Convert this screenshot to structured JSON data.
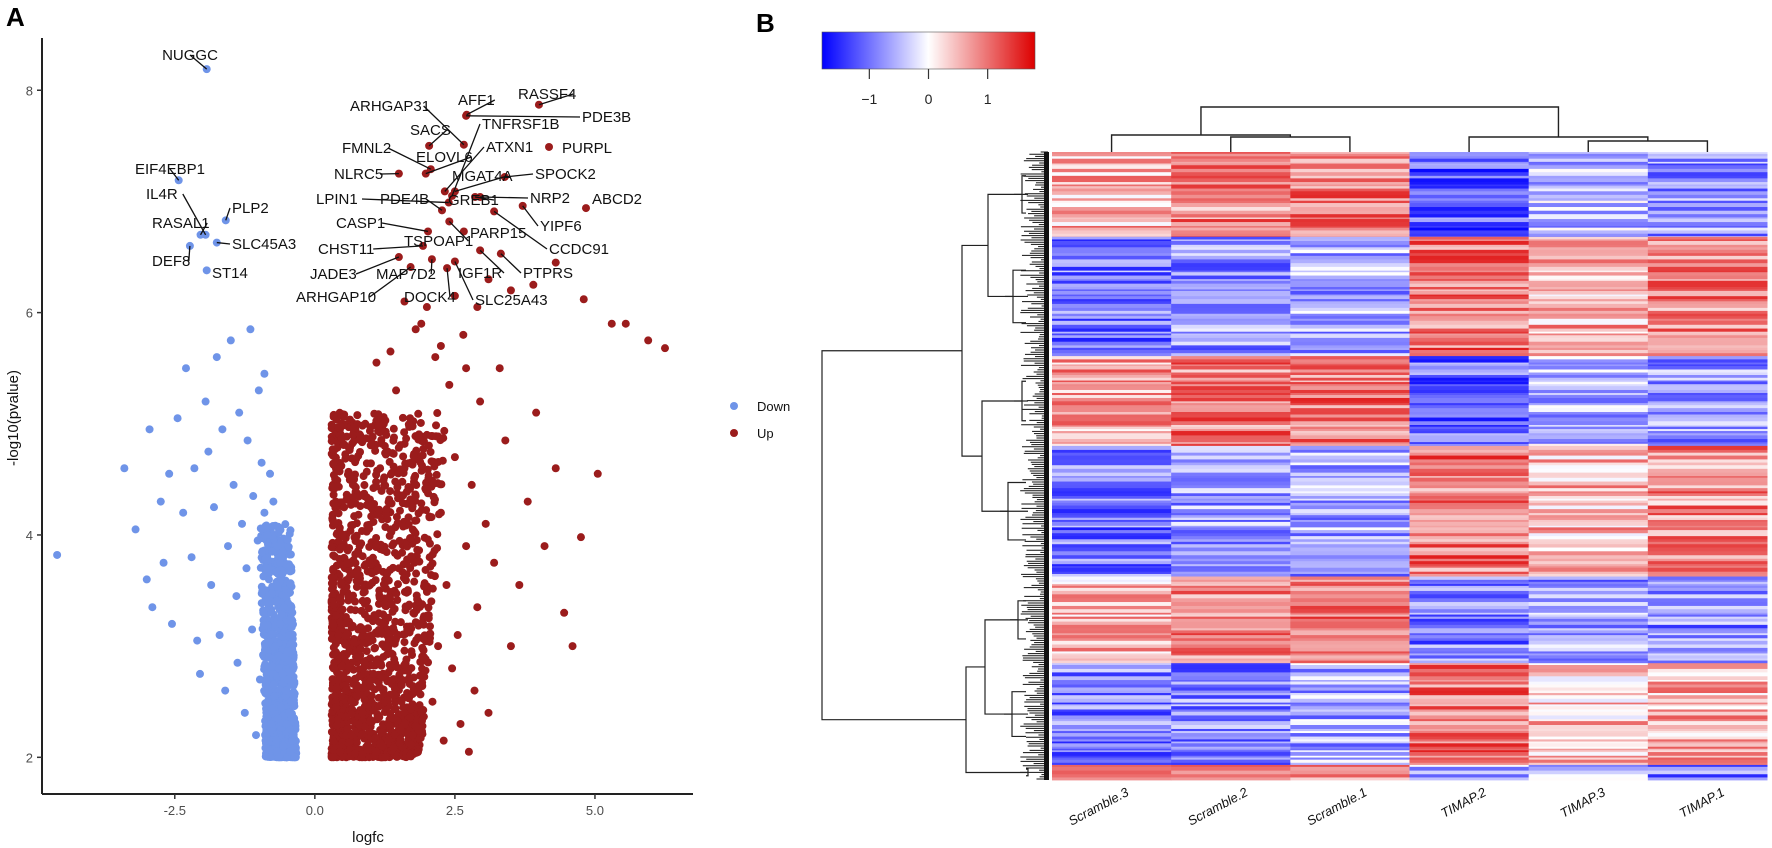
{
  "panels": {
    "a_letter": "A",
    "b_letter": "B"
  },
  "chart_data": [
    {
      "type": "scatter",
      "panel": "A",
      "title": "",
      "xlabel": "logfc",
      "ylabel": "-log10(pvalue)",
      "xlim": [
        -4.87,
        6.75
      ],
      "ylim": [
        1.67,
        8.47
      ],
      "x_ticks": [
        -2.5,
        0.0,
        2.5,
        5.0
      ],
      "x_tick_labels": [
        "-2.5",
        "0.0",
        "2.5",
        "5.0"
      ],
      "y_ticks": [
        2,
        4,
        6,
        8
      ],
      "y_tick_labels": [
        "2",
        "4",
        "6",
        "8"
      ],
      "grid": false,
      "legend": {
        "placement": "right",
        "entries": [
          {
            "name": "Down",
            "color": "#6f94e8"
          },
          {
            "name": "Up",
            "color": "#9b1c1c"
          }
        ]
      },
      "series": [
        {
          "name": "Down",
          "color": "#6f94e8",
          "points": [
            [
              -4.6,
              3.82
            ],
            [
              -3.4,
              4.6
            ],
            [
              -3.2,
              4.05
            ],
            [
              -2.95,
              4.95
            ],
            [
              -3.0,
              3.6
            ],
            [
              -2.9,
              3.35
            ],
            [
              -2.7,
              3.75
            ],
            [
              -2.55,
              3.2
            ],
            [
              -2.75,
              4.3
            ],
            [
              -2.6,
              4.55
            ],
            [
              -2.45,
              5.05
            ],
            [
              -2.3,
              5.5
            ],
            [
              -2.35,
              4.2
            ],
            [
              -2.2,
              3.8
            ],
            [
              -2.15,
              4.6
            ],
            [
              -2.1,
              3.05
            ],
            [
              -2.05,
              2.75
            ],
            [
              -1.95,
              5.2
            ],
            [
              -1.9,
              4.75
            ],
            [
              -1.85,
              3.55
            ],
            [
              -1.8,
              4.25
            ],
            [
              -1.75,
              5.6
            ],
            [
              -1.7,
              3.1
            ],
            [
              -1.65,
              4.95
            ],
            [
              -1.6,
              2.6
            ],
            [
              -1.55,
              3.9
            ],
            [
              -1.5,
              5.75
            ],
            [
              -1.45,
              4.45
            ],
            [
              -1.4,
              3.45
            ],
            [
              -1.38,
              2.85
            ],
            [
              -1.35,
              5.1
            ],
            [
              -1.3,
              4.1
            ],
            [
              -1.25,
              2.4
            ],
            [
              -1.22,
              3.7
            ],
            [
              -1.2,
              4.85
            ],
            [
              -1.15,
              5.85
            ],
            [
              -1.12,
              3.15
            ],
            [
              -1.1,
              4.35
            ],
            [
              -1.05,
              2.2
            ],
            [
              -1.02,
              3.95
            ],
            [
              -1.0,
              5.3
            ],
            [
              -0.98,
              2.7
            ],
            [
              -0.95,
              4.65
            ],
            [
              -0.92,
              3.3
            ],
            [
              -0.9,
              5.45
            ],
            [
              -0.88,
              2.15
            ],
            [
              -0.85,
              4.0
            ],
            [
              -0.84,
              2.95
            ],
            [
              -0.82,
              3.6
            ],
            [
              -0.8,
              4.55
            ],
            [
              -0.78,
              2.3
            ],
            [
              -0.76,
              3.85
            ],
            [
              -0.74,
              4.3
            ],
            [
              -0.72,
              2.55
            ],
            [
              -0.7,
              3.4
            ],
            [
              -0.68,
              2.05
            ],
            [
              -0.66,
              3.9
            ],
            [
              -0.64,
              2.8
            ],
            [
              -0.62,
              3.2
            ],
            [
              -0.6,
              2.45
            ],
            [
              -0.58,
              3.65
            ],
            [
              -0.56,
              2.1
            ],
            [
              -0.54,
              2.9
            ],
            [
              -0.52,
              3.45
            ],
            [
              -0.5,
              2.3
            ],
            [
              -0.48,
              2.7
            ],
            [
              -0.46,
              3.1
            ],
            [
              -0.44,
              2.05
            ],
            [
              -0.42,
              2.5
            ],
            [
              -0.4,
              2.85
            ],
            [
              -0.38,
              2.2
            ],
            [
              -0.36,
              2.0
            ],
            [
              -0.9,
              4.2
            ],
            [
              -0.86,
              3.7
            ],
            [
              -0.82,
              2.9
            ],
            [
              -0.78,
              3.3
            ],
            [
              -0.74,
              2.65
            ],
            [
              -0.7,
              3.0
            ],
            [
              -0.66,
              2.35
            ],
            [
              -0.62,
              3.75
            ],
            [
              -0.58,
              2.75
            ],
            [
              -0.55,
              3.35
            ],
            [
              -0.52,
              2.6
            ],
            [
              -0.49,
              2.95
            ],
            [
              -0.46,
              2.4
            ],
            [
              -0.43,
              3.25
            ],
            [
              -0.4,
              2.15
            ],
            [
              -0.37,
              2.55
            ]
          ],
          "labeled": [
            {
              "gene": "NUGGC",
              "x": -1.93,
              "y": 8.19
            },
            {
              "gene": "EIF4EBP1",
              "x": -2.43,
              "y": 7.19
            },
            {
              "gene": "IL4R",
              "x": -1.95,
              "y": 6.7
            },
            {
              "gene": "RASAL1",
              "x": -2.04,
              "y": 6.7
            },
            {
              "gene": "PLP2",
              "x": -1.59,
              "y": 6.83
            },
            {
              "gene": "SLC45A3",
              "x": -1.75,
              "y": 6.63
            },
            {
              "gene": "DEF8",
              "x": -2.23,
              "y": 6.6
            },
            {
              "gene": "ST14",
              "x": -1.93,
              "y": 6.38
            }
          ]
        },
        {
          "name": "Up",
          "color": "#9b1c1c",
          "points": [
            [
              6.25,
              5.68
            ],
            [
              5.95,
              5.75
            ],
            [
              5.55,
              5.9
            ],
            [
              5.3,
              5.9
            ],
            [
              5.05,
              4.55
            ],
            [
              4.75,
              3.98
            ],
            [
              4.6,
              3.0
            ],
            [
              4.45,
              3.3
            ],
            [
              4.3,
              4.6
            ],
            [
              4.1,
              3.9
            ],
            [
              3.95,
              5.1
            ],
            [
              3.8,
              4.3
            ],
            [
              3.65,
              3.55
            ],
            [
              3.5,
              3.0
            ],
            [
              3.4,
              4.85
            ],
            [
              3.3,
              5.5
            ],
            [
              3.2,
              3.75
            ],
            [
              3.1,
              2.4
            ],
            [
              3.05,
              4.1
            ],
            [
              2.95,
              5.2
            ],
            [
              2.9,
              3.35
            ],
            [
              2.85,
              2.6
            ],
            [
              2.8,
              4.45
            ],
            [
              2.75,
              2.05
            ],
            [
              2.7,
              3.9
            ],
            [
              2.65,
              5.8
            ],
            [
              2.6,
              2.3
            ],
            [
              2.55,
              3.1
            ],
            [
              2.5,
              4.7
            ],
            [
              2.45,
              2.8
            ],
            [
              2.4,
              5.35
            ],
            [
              2.35,
              3.55
            ],
            [
              2.3,
              2.15
            ],
            [
              2.25,
              4.2
            ],
            [
              2.2,
              3.0
            ],
            [
              2.15,
              5.6
            ],
            [
              2.1,
              2.5
            ],
            [
              2.05,
              3.8
            ],
            [
              2.0,
              4.9
            ],
            [
              1.95,
              2.9
            ],
            [
              1.9,
              5.9
            ],
            [
              1.85,
              3.4
            ],
            [
              1.8,
              4.35
            ],
            [
              1.75,
              2.2
            ],
            [
              1.7,
              5.05
            ],
            [
              1.65,
              3.15
            ],
            [
              1.6,
              4.6
            ],
            [
              1.55,
              2.65
            ],
            [
              1.5,
              3.7
            ],
            [
              1.45,
              5.3
            ],
            [
              1.4,
              2.35
            ],
            [
              1.35,
              4.05
            ],
            [
              1.3,
              3.0
            ],
            [
              1.25,
              4.8
            ],
            [
              1.2,
              2.1
            ],
            [
              1.15,
              3.5
            ],
            [
              1.1,
              5.55
            ],
            [
              1.05,
              2.75
            ],
            [
              1.0,
              4.25
            ],
            [
              0.95,
              3.25
            ],
            [
              0.9,
              5.0
            ],
            [
              0.85,
              2.4
            ],
            [
              0.8,
              3.9
            ],
            [
              0.75,
              2.9
            ],
            [
              0.7,
              4.5
            ],
            [
              0.65,
              2.2
            ],
            [
              0.6,
              3.45
            ],
            [
              0.55,
              2.6
            ],
            [
              0.5,
              4.0
            ],
            [
              0.45,
              2.05
            ],
            [
              0.42,
              3.1
            ],
            [
              0.38,
              2.45
            ],
            [
              0.35,
              2.8
            ],
            [
              0.32,
              2.15
            ],
            [
              0.3,
              2.0
            ],
            [
              1.6,
              6.1
            ],
            [
              1.8,
              5.85
            ],
            [
              2.0,
              6.05
            ],
            [
              2.25,
              5.7
            ],
            [
              2.5,
              6.15
            ],
            [
              2.9,
              6.05
            ],
            [
              3.5,
              6.2
            ],
            [
              3.9,
              6.25
            ],
            [
              4.3,
              6.45
            ],
            [
              4.8,
              6.12
            ],
            [
              3.1,
              6.3
            ],
            [
              1.35,
              5.65
            ],
            [
              2.7,
              5.5
            ]
          ],
          "labeled": [
            {
              "gene": "RASSF4",
              "x": 4.0,
              "y": 7.87
            },
            {
              "gene": "AFF1",
              "x": 2.71,
              "y": 7.78
            },
            {
              "gene": "PDE3B",
              "x": 2.7,
              "y": 7.77
            },
            {
              "gene": "ARHGAP31",
              "x": 2.66,
              "y": 7.51
            },
            {
              "gene": "TNFRSF1B",
              "x": 2.45,
              "y": 7.05
            },
            {
              "gene": "SACS",
              "x": 2.04,
              "y": 7.5
            },
            {
              "gene": "PURPL",
              "x": 4.18,
              "y": 7.49
            },
            {
              "gene": "FMNL2",
              "x": 2.07,
              "y": 7.29
            },
            {
              "gene": "ELOVL6",
              "x": 1.98,
              "y": 7.25
            },
            {
              "gene": "NLRC5",
              "x": 1.5,
              "y": 7.25
            },
            {
              "gene": "ATXN1",
              "x": 2.32,
              "y": 7.09
            },
            {
              "gene": "SPOCK2",
              "x": 3.39,
              "y": 7.22
            },
            {
              "gene": "MGAT4A",
              "x": 2.5,
              "y": 7.09
            },
            {
              "gene": "GREB1",
              "x": 2.86,
              "y": 7.04
            },
            {
              "gene": "NRP2",
              "x": 2.95,
              "y": 7.04
            },
            {
              "gene": "ABCD2",
              "x": 4.84,
              "y": 6.94
            },
            {
              "gene": "YIPF6",
              "x": 3.71,
              "y": 6.96
            },
            {
              "gene": "LPIN1",
              "x": 2.39,
              "y": 6.99
            },
            {
              "gene": "PDE4B",
              "x": 2.27,
              "y": 6.92
            },
            {
              "gene": "CCDC91",
              "x": 3.2,
              "y": 6.91
            },
            {
              "gene": "CASP1",
              "x": 2.02,
              "y": 6.73
            },
            {
              "gene": "TSPOAP1",
              "x": 2.4,
              "y": 6.82
            },
            {
              "gene": "CHST11",
              "x": 1.93,
              "y": 6.6
            },
            {
              "gene": "PARP15",
              "x": 2.66,
              "y": 6.73
            },
            {
              "gene": "IGF1R",
              "x": 2.95,
              "y": 6.56
            },
            {
              "gene": "PTPRS",
              "x": 3.32,
              "y": 6.53
            },
            {
              "gene": "JADE3",
              "x": 1.5,
              "y": 6.5
            },
            {
              "gene": "MAP7D2",
              "x": 2.09,
              "y": 6.48
            },
            {
              "gene": "ARHGAP10",
              "x": 1.71,
              "y": 6.41
            },
            {
              "gene": "DOCK4",
              "x": 2.36,
              "y": 6.4
            },
            {
              "gene": "SLC25A43",
              "x": 2.5,
              "y": 6.46
            }
          ]
        }
      ]
    },
    {
      "type": "heatmap",
      "panel": "B",
      "title": "",
      "columns": [
        "Scramble.3",
        "Scramble.2",
        "Scramble.1",
        "TIMAP.2",
        "TIMAP.3",
        "TIMAP.1"
      ],
      "color_scale": {
        "low": "#0000ff",
        "mid": "#ffffff",
        "high": "#dd0000",
        "range": [
          -1.8,
          1.8
        ],
        "ticks": [
          -1,
          0,
          1
        ],
        "tick_labels": [
          "−1",
          "0",
          "1"
        ]
      },
      "column_dendrogram": "((Scramble.3,(Scramble.2,Scramble.1)),(TIMAP.2,(TIMAP.3,TIMAP.1)))",
      "row_dendrogram": "hierarchical clustering of differentially expressed genes",
      "row_blocks": [
        {
          "fraction": 0.135,
          "mean_values": [
            0.55,
            0.85,
            0.95,
            -1.1,
            -0.55,
            -0.75
          ]
        },
        {
          "fraction": 0.19,
          "mean_values": [
            -0.95,
            -0.75,
            -0.6,
            0.95,
            0.55,
            0.85
          ]
        },
        {
          "fraction": 0.143,
          "mean_values": [
            0.65,
            0.9,
            0.95,
            -1.05,
            -0.5,
            -0.7
          ]
        },
        {
          "fraction": 0.208,
          "mean_values": [
            -0.95,
            -0.7,
            -0.65,
            0.95,
            0.5,
            0.8
          ]
        },
        {
          "fraction": 0.138,
          "mean_values": [
            0.5,
            0.85,
            0.9,
            -0.9,
            -0.7,
            -0.8
          ]
        },
        {
          "fraction": 0.162,
          "mean_values": [
            -0.9,
            -0.85,
            -0.6,
            1.0,
            0.45,
            0.6
          ]
        },
        {
          "fraction": 0.024,
          "mean_values": [
            0.5,
            0.8,
            0.8,
            -0.5,
            -0.55,
            -0.9
          ]
        }
      ]
    }
  ]
}
